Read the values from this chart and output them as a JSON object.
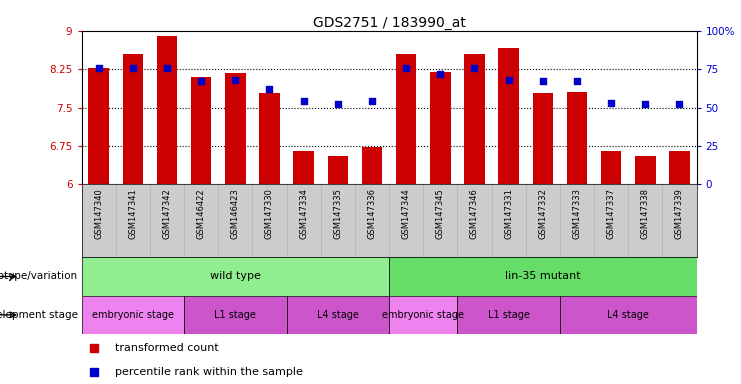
{
  "title": "GDS2751 / 183990_at",
  "samples": [
    "GSM147340",
    "GSM147341",
    "GSM147342",
    "GSM146422",
    "GSM146423",
    "GSM147330",
    "GSM147334",
    "GSM147335",
    "GSM147336",
    "GSM147344",
    "GSM147345",
    "GSM147346",
    "GSM147331",
    "GSM147332",
    "GSM147333",
    "GSM147337",
    "GSM147338",
    "GSM147339"
  ],
  "transformed_count": [
    8.28,
    8.55,
    8.9,
    8.1,
    8.17,
    7.78,
    6.65,
    6.55,
    6.72,
    8.55,
    8.2,
    8.55,
    8.67,
    7.78,
    7.8,
    6.65,
    6.55,
    6.65
  ],
  "percentile_rank": [
    76,
    76,
    76,
    67,
    68,
    62,
    54,
    52,
    54,
    76,
    72,
    76,
    68,
    67,
    67,
    53,
    52,
    52
  ],
  "ylim_left": [
    6,
    9
  ],
  "ylim_right": [
    0,
    100
  ],
  "yticks_left": [
    6,
    6.75,
    7.5,
    8.25,
    9
  ],
  "yticks_right": [
    0,
    25,
    50,
    75,
    100
  ],
  "ytick_labels_left": [
    "6",
    "6.75",
    "7.5",
    "8.25",
    "9"
  ],
  "ytick_labels_right": [
    "0",
    "25",
    "50",
    "75",
    "100%"
  ],
  "bar_color": "#cc0000",
  "dot_color": "#0000cc",
  "bar_bottom": 6,
  "hlines": [
    6.75,
    7.5,
    8.25
  ],
  "genotype_groups": [
    {
      "label": "wild type",
      "start": 0,
      "end": 9,
      "color": "#90ee90"
    },
    {
      "label": "lin-35 mutant",
      "start": 9,
      "end": 18,
      "color": "#66dd66"
    }
  ],
  "dev_stage_groups": [
    {
      "label": "embryonic stage",
      "start": 0,
      "end": 3,
      "color": "#ee82ee"
    },
    {
      "label": "L1 stage",
      "start": 3,
      "end": 6,
      "color": "#cc55cc"
    },
    {
      "label": "L4 stage",
      "start": 6,
      "end": 9,
      "color": "#cc55cc"
    },
    {
      "label": "embryonic stage",
      "start": 9,
      "end": 11,
      "color": "#ee82ee"
    },
    {
      "label": "L1 stage",
      "start": 11,
      "end": 14,
      "color": "#cc55cc"
    },
    {
      "label": "L4 stage",
      "start": 14,
      "end": 18,
      "color": "#cc55cc"
    }
  ],
  "legend_items": [
    {
      "label": "transformed count",
      "color": "#cc0000"
    },
    {
      "label": "percentile rank within the sample",
      "color": "#0000cc"
    }
  ],
  "background_color": "#ffffff",
  "tick_label_color_left": "#cc0000",
  "tick_label_color_right": "#0000cc",
  "label_row1": "genotype/variation",
  "label_row2": "development stage",
  "sample_bg": "#cccccc"
}
